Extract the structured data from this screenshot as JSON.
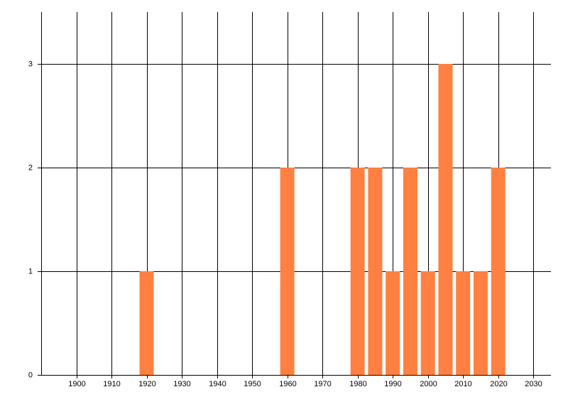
{
  "chart_data": {
    "type": "bar",
    "x": [
      1920,
      1960,
      1980,
      1985,
      1990,
      1995,
      2000,
      2005,
      2010,
      2015,
      2020
    ],
    "values": [
      1,
      2,
      2,
      2,
      1,
      2,
      1,
      3,
      1,
      1,
      2
    ],
    "color": "#ff8040",
    "xlim": [
      1890,
      2035
    ],
    "xticks": [
      1900,
      1910,
      1920,
      1930,
      1940,
      1950,
      1960,
      1970,
      1980,
      1990,
      2000,
      2010,
      2020,
      2030
    ],
    "ylim": [
      0,
      3.5
    ],
    "yticks": [
      0,
      1,
      2,
      3
    ],
    "grid": true
  }
}
